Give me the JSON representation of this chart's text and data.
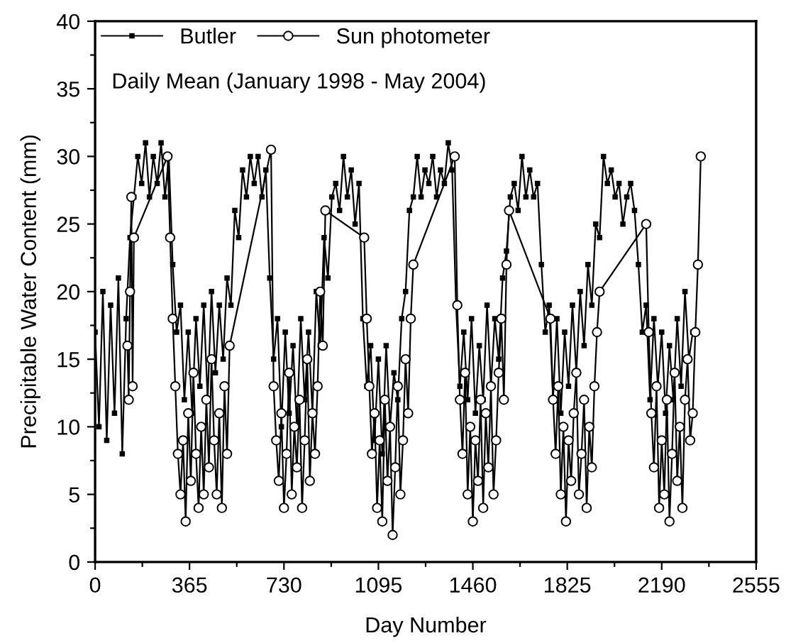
{
  "chart_data": {
    "type": "line",
    "xlabel": "Day Number",
    "ylabel": "Precipitable Water Content (mm)",
    "annotations": [
      "Daily Mean (January 1998 - May 2004)"
    ],
    "xlim": [
      0,
      2555
    ],
    "ylim": [
      0,
      40
    ],
    "xticks": [
      0,
      {
        "value": 182.5,
        "label": null
      },
      365,
      {
        "value": 547.5,
        "label": null
      },
      730,
      {
        "value": 912.5,
        "label": null
      },
      1095,
      {
        "value": 1277.5,
        "label": null
      },
      1460,
      {
        "value": 1642.5,
        "label": null
      },
      1825,
      {
        "value": 2007.5,
        "label": null
      },
      2190,
      {
        "value": 2372.5,
        "label": null
      },
      2555
    ],
    "yticks": [
      0,
      {
        "value": 2.5,
        "label": null
      },
      5,
      {
        "value": 7.5,
        "label": null
      },
      10,
      {
        "value": 12.5,
        "label": null
      },
      15,
      {
        "value": 17.5,
        "label": null
      },
      20,
      {
        "value": 22.5,
        "label": null
      },
      25,
      {
        "value": 27.5,
        "label": null
      },
      30,
      {
        "value": 32.5,
        "label": null
      },
      35,
      {
        "value": 37.5,
        "label": null
      },
      40
    ],
    "grid": false,
    "legend": "top left",
    "series": [
      {
        "name": "Butler",
        "color": "#000000",
        "marker": "square",
        "x": [
          0,
          15,
          30,
          45,
          60,
          75,
          90,
          105,
          120,
          135,
          150,
          165,
          180,
          195,
          210,
          225,
          240,
          255,
          270,
          285,
          300,
          315,
          330,
          345,
          360,
          375,
          390,
          405,
          420,
          435,
          450,
          465,
          480,
          495,
          510,
          525,
          540,
          555,
          570,
          585,
          600,
          615,
          630,
          645,
          660,
          675,
          690,
          705,
          720,
          735,
          750,
          765,
          780,
          795,
          810,
          825,
          840,
          855,
          870,
          885,
          900,
          915,
          930,
          945,
          960,
          975,
          990,
          1005,
          1020,
          1035,
          1050,
          1065,
          1080,
          1095,
          1110,
          1125,
          1140,
          1155,
          1170,
          1185,
          1200,
          1215,
          1230,
          1245,
          1260,
          1275,
          1290,
          1305,
          1320,
          1335,
          1350,
          1365,
          1380,
          1395,
          1410,
          1425,
          1440,
          1455,
          1470,
          1485,
          1500,
          1515,
          1530,
          1545,
          1560,
          1575,
          1590,
          1605,
          1620,
          1635,
          1650,
          1665,
          1680,
          1695,
          1710,
          1725,
          1740,
          1755,
          1770,
          1785,
          1800,
          1815,
          1830,
          1845,
          1860,
          1875,
          1890,
          1905,
          1920,
          1935,
          1950,
          1965,
          1980,
          1995,
          2010,
          2025,
          2040,
          2055,
          2070,
          2085,
          2100,
          2115,
          2130,
          2145,
          2160,
          2175,
          2190,
          2205,
          2220,
          2235,
          2250,
          2265,
          2280,
          2295,
          2310
        ],
        "values": [
          17,
          10,
          20,
          9,
          19,
          11,
          21,
          8,
          18,
          24,
          27,
          30,
          28,
          31,
          27,
          30,
          28,
          31,
          27,
          30,
          22,
          17,
          19,
          12,
          17,
          11,
          18,
          13,
          19,
          12,
          20,
          14,
          19,
          15,
          21,
          19,
          26,
          24,
          29,
          27,
          30,
          28,
          30,
          27,
          29,
          21,
          15,
          18,
          10,
          17,
          11,
          16,
          10,
          18,
          12,
          17,
          11,
          20,
          16,
          24,
          21,
          27,
          28,
          26,
          30,
          27,
          29,
          25,
          28,
          18,
          13,
          16,
          9,
          15,
          8,
          16,
          10,
          14,
          12,
          18,
          20,
          26,
          27,
          30,
          27,
          29,
          28,
          30,
          27,
          29,
          28,
          31,
          29,
          19,
          13,
          17,
          12,
          18,
          11,
          16,
          12,
          19,
          13,
          18,
          15,
          21,
          23,
          27,
          28,
          26,
          30,
          27,
          29,
          27,
          28,
          22,
          17,
          19,
          12,
          18,
          11,
          17,
          13,
          19,
          14,
          20,
          16,
          22,
          19,
          25,
          24,
          30,
          28,
          29,
          27,
          28,
          25,
          27,
          28,
          26,
          22,
          17,
          19,
          12,
          18,
          13,
          17,
          11,
          16,
          12,
          18,
          13,
          20,
          15,
          17
        ]
      },
      {
        "name": "Sun photometer",
        "color": "#000000",
        "marker": "circle",
        "x": [
          125,
          130,
          135,
          140,
          145,
          150,
          280,
          290,
          300,
          310,
          320,
          330,
          340,
          350,
          360,
          370,
          380,
          390,
          400,
          410,
          420,
          430,
          440,
          450,
          460,
          470,
          480,
          490,
          500,
          510,
          520,
          680,
          690,
          700,
          710,
          720,
          730,
          740,
          750,
          760,
          770,
          780,
          790,
          800,
          810,
          820,
          830,
          840,
          850,
          860,
          870,
          880,
          890,
          1040,
          1050,
          1060,
          1070,
          1080,
          1090,
          1100,
          1110,
          1120,
          1130,
          1140,
          1150,
          1160,
          1170,
          1180,
          1190,
          1200,
          1210,
          1220,
          1230,
          1390,
          1400,
          1410,
          1420,
          1430,
          1440,
          1450,
          1460,
          1470,
          1480,
          1490,
          1500,
          1510,
          1520,
          1530,
          1540,
          1550,
          1560,
          1570,
          1580,
          1590,
          1600,
          1760,
          1770,
          1780,
          1790,
          1800,
          1810,
          1820,
          1830,
          1840,
          1850,
          1860,
          1870,
          1880,
          1890,
          1900,
          1910,
          1920,
          1930,
          1940,
          1950,
          2130,
          2140,
          2150,
          2160,
          2170,
          2180,
          2190,
          2200,
          2210,
          2220,
          2230,
          2240,
          2250,
          2260,
          2270,
          2280,
          2290,
          2300,
          2310,
          2320,
          2330,
          2341
        ],
        "values": [
          16,
          12,
          20,
          27,
          13,
          24,
          30,
          24,
          18,
          13,
          8,
          5,
          9,
          3,
          11,
          6,
          14,
          8,
          4,
          10,
          5,
          12,
          7,
          15,
          9,
          5,
          11,
          4,
          13,
          8,
          16,
          30.5,
          13,
          9,
          6,
          11,
          4,
          8,
          14,
          5,
          10,
          7,
          12,
          4,
          9,
          15,
          6,
          11,
          8,
          13,
          20,
          16,
          26,
          24,
          18,
          13,
          8,
          11,
          4,
          9,
          3,
          12,
          6,
          10,
          2,
          7,
          13,
          5,
          9,
          15,
          11,
          18,
          22,
          30,
          19,
          12,
          8,
          14,
          5,
          10,
          3,
          9,
          6,
          12,
          4,
          11,
          7,
          13,
          5,
          9,
          14,
          18,
          12,
          22,
          26,
          18,
          12,
          8,
          13,
          5,
          10,
          3,
          9,
          6,
          11,
          14,
          5,
          8,
          12,
          4,
          10,
          7,
          13,
          17,
          20,
          25,
          17,
          11,
          7,
          13,
          4,
          9,
          5,
          12,
          3,
          8,
          14,
          6,
          10,
          4,
          12,
          15,
          9,
          11,
          17,
          22,
          30
        ]
      }
    ]
  }
}
